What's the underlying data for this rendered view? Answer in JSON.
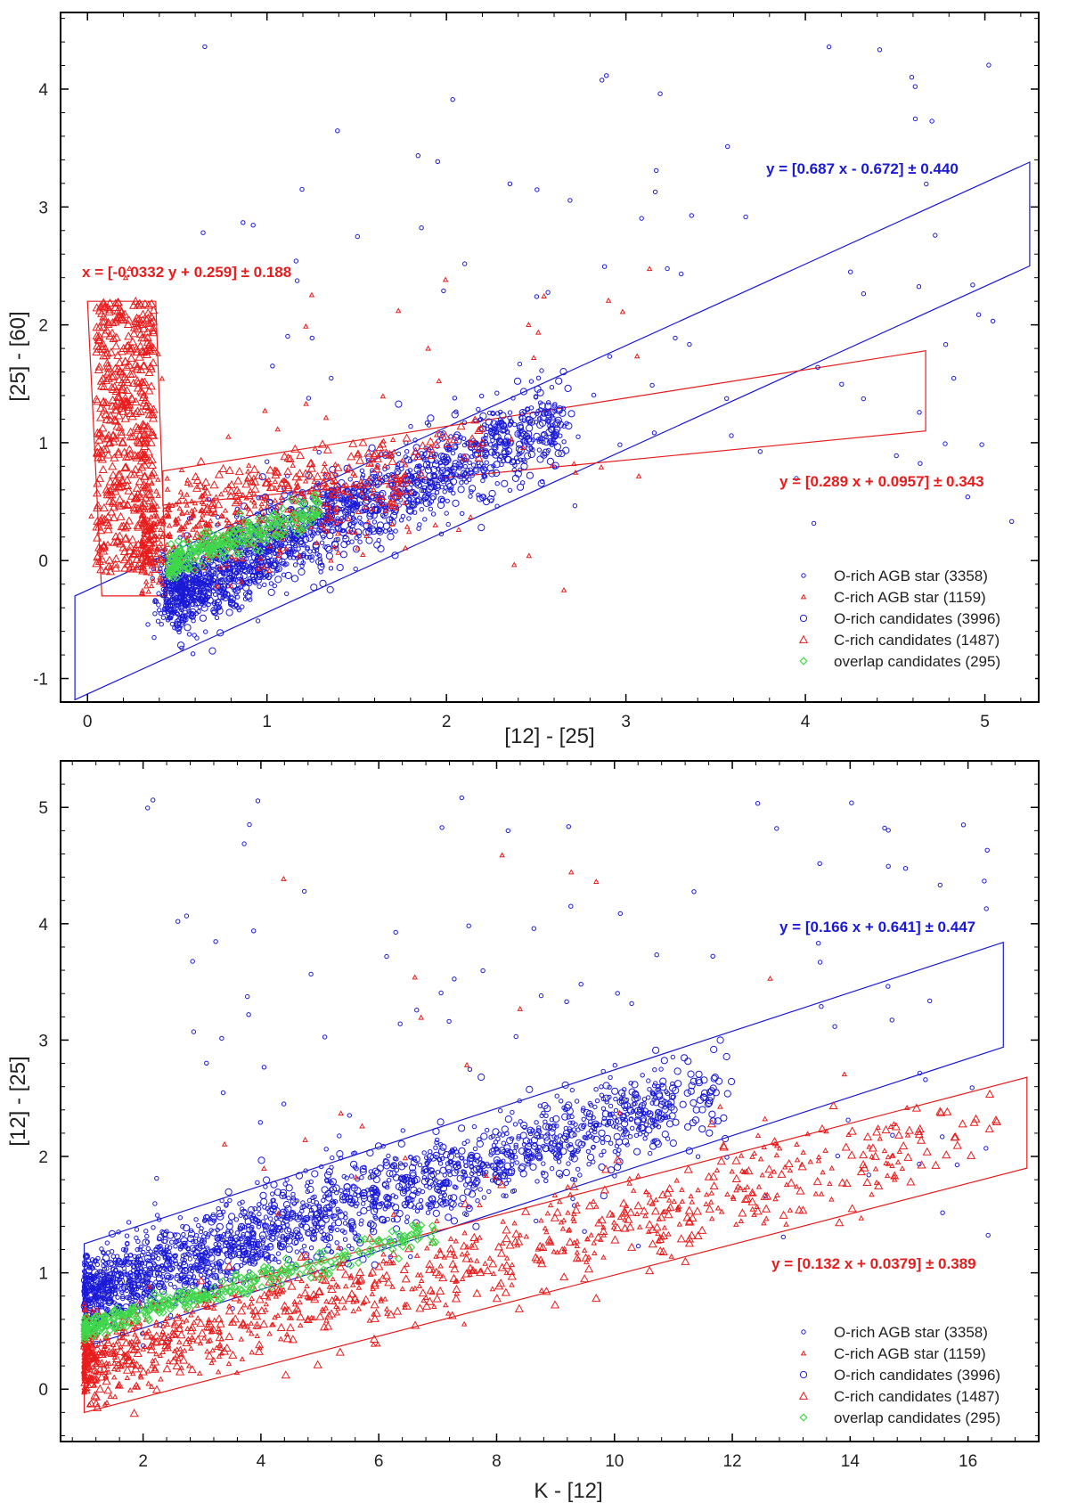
{
  "colors": {
    "o_rich": "#1a1ad6",
    "c_rich": "#e81c1c",
    "overlap": "#3fd84a",
    "frame": "#000000"
  },
  "chart_data": [
    {
      "type": "scatter",
      "xlabel": "[12] - [25]",
      "ylabel": "[25] - [60]",
      "xlim": [
        -0.15,
        5.3
      ],
      "ylim": [
        -1.2,
        4.65
      ],
      "x_ticks": [
        0,
        1,
        2,
        3,
        4,
        5
      ],
      "y_ticks": [
        -1,
        0,
        1,
        2,
        3,
        4
      ],
      "legend": [
        {
          "name": "O-rich AGB star (3358)",
          "marker": "small-circle",
          "color": "#1a1ad6"
        },
        {
          "name": "C-rich AGB star (1159)",
          "marker": "small-triangle",
          "color": "#e81c1c"
        },
        {
          "name": "O-rich candidates (3996)",
          "marker": "circle",
          "color": "#1a1ad6"
        },
        {
          "name": "C-rich candidates (1487)",
          "marker": "triangle",
          "color": "#e81c1c"
        },
        {
          "name": "overlap candidates (295)",
          "marker": "diamond",
          "color": "#3fd84a"
        }
      ],
      "fits": [
        {
          "label": "y = [0.687 x - 0.672] ±  0.440",
          "color": "#1a1ad6",
          "region": [
            [
              -0.07,
              -1.18
            ],
            [
              5.25,
              2.5
            ],
            [
              5.25,
              3.38
            ],
            [
              -0.07,
              -0.3
            ]
          ]
        },
        {
          "label": "y = [0.289 x + 0.0957] ±  0.343",
          "color": "#e81c1c",
          "region": [
            [
              0.42,
              0.47
            ],
            [
              4.67,
              1.1
            ],
            [
              4.67,
              1.78
            ],
            [
              0.42,
              0.76
            ]
          ]
        },
        {
          "label": "x = [-0.0332 y + 0.259] ±  0.188",
          "color": "#e81c1c",
          "region": [
            [
              0.08,
              -0.3
            ],
            [
              0.44,
              -0.3
            ],
            [
              0.38,
              2.2
            ],
            [
              0.0,
              2.2
            ]
          ]
        }
      ]
    },
    {
      "type": "scatter",
      "xlabel": "K - [12]",
      "ylabel": "[12] - [25]",
      "xlim": [
        0.6,
        17.2
      ],
      "ylim": [
        -0.45,
        5.4
      ],
      "x_ticks": [
        2,
        4,
        6,
        8,
        10,
        12,
        14,
        16
      ],
      "y_ticks": [
        0,
        1,
        2,
        3,
        4,
        5
      ],
      "legend": [
        {
          "name": "O-rich AGB star (3358)",
          "marker": "small-circle",
          "color": "#1a1ad6"
        },
        {
          "name": "C-rich AGB star (1159)",
          "marker": "small-triangle",
          "color": "#e81c1c"
        },
        {
          "name": "O-rich candidates (3996)",
          "marker": "circle",
          "color": "#1a1ad6"
        },
        {
          "name": "C-rich candidates (1487)",
          "marker": "triangle",
          "color": "#e81c1c"
        },
        {
          "name": "overlap candidates (295)",
          "marker": "diamond",
          "color": "#3fd84a"
        }
      ],
      "fits": [
        {
          "label": "y = [0.166 x + 0.641] ±  0.447",
          "color": "#1a1ad6",
          "region": [
            [
              1.0,
              0.36
            ],
            [
              16.6,
              2.94
            ],
            [
              16.6,
              3.84
            ],
            [
              1.0,
              1.25
            ]
          ]
        },
        {
          "label": "y = [0.132 x + 0.0379] ±  0.389",
          "color": "#e81c1c",
          "region": [
            [
              1.0,
              -0.2
            ],
            [
              17.0,
              1.9
            ],
            [
              17.0,
              2.68
            ],
            [
              1.0,
              0.57
            ]
          ]
        }
      ]
    }
  ]
}
